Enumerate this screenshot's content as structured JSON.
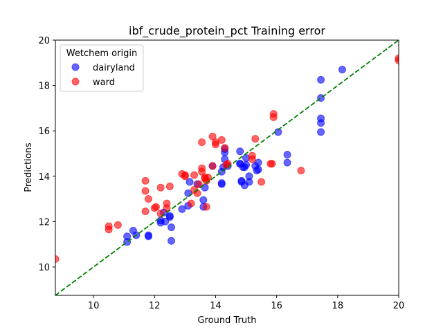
{
  "chart_data": {
    "type": "scatter",
    "title": "ibf_crude_protein_pct Training error",
    "xlabel": "Ground Truth",
    "ylabel": "Predictions",
    "xlim": [
      8.75,
      20
    ],
    "ylim": [
      8.75,
      20
    ],
    "xticks": [
      10,
      12,
      14,
      16,
      18,
      20
    ],
    "yticks": [
      10,
      12,
      14,
      16,
      18,
      20
    ],
    "grid": false,
    "legend": {
      "title": "Wetchem origin",
      "position": "top-left"
    },
    "reference_line": {
      "type": "y=x",
      "color": "#008000",
      "style": "dashed"
    },
    "series": [
      {
        "name": "dairyland",
        "color": "#0000ff",
        "points": [
          [
            11.1,
            11.1
          ],
          [
            11.1,
            11.35
          ],
          [
            11.3,
            11.6
          ],
          [
            11.4,
            11.4
          ],
          [
            11.8,
            11.35
          ],
          [
            11.8,
            11.4
          ],
          [
            12.2,
            11.95
          ],
          [
            12.2,
            12.05
          ],
          [
            12.3,
            12.4
          ],
          [
            12.35,
            12.0
          ],
          [
            12.5,
            12.2
          ],
          [
            12.5,
            12.25
          ],
          [
            12.55,
            11.75
          ],
          [
            12.55,
            11.15
          ],
          [
            12.9,
            12.55
          ],
          [
            13.1,
            12.7
          ],
          [
            13.1,
            13.25
          ],
          [
            13.15,
            13.75
          ],
          [
            13.4,
            13.65
          ],
          [
            13.6,
            12.65
          ],
          [
            13.6,
            12.95
          ],
          [
            13.65,
            13.5
          ],
          [
            13.9,
            14.45
          ],
          [
            14.2,
            13.65
          ],
          [
            14.2,
            13.7
          ],
          [
            14.2,
            14.2
          ],
          [
            14.25,
            14.4
          ],
          [
            14.3,
            14.75
          ],
          [
            14.3,
            15.05
          ],
          [
            14.3,
            15.2
          ],
          [
            14.4,
            14.45
          ],
          [
            14.8,
            15.1
          ],
          [
            14.8,
            14.55
          ],
          [
            14.8,
            14.55
          ],
          [
            14.85,
            13.8
          ],
          [
            14.85,
            13.75
          ],
          [
            14.9,
            14.4
          ],
          [
            14.95,
            14.4
          ],
          [
            14.95,
            13.6
          ],
          [
            15.0,
            14.5
          ],
          [
            15.0,
            14.8
          ],
          [
            15.1,
            14.0
          ],
          [
            15.1,
            13.75
          ],
          [
            15.3,
            14.45
          ],
          [
            15.35,
            14.25
          ],
          [
            15.4,
            14.3
          ],
          [
            15.4,
            14.6
          ],
          [
            16.05,
            15.95
          ],
          [
            16.35,
            14.6
          ],
          [
            16.35,
            14.95
          ],
          [
            17.45,
            15.95
          ],
          [
            17.45,
            16.35
          ],
          [
            17.45,
            16.55
          ],
          [
            17.45,
            17.45
          ],
          [
            17.45,
            18.25
          ],
          [
            18.15,
            18.7
          ]
        ]
      },
      {
        "name": "ward",
        "color": "#ff0000",
        "points": [
          [
            8.75,
            10.35
          ],
          [
            10.5,
            11.65
          ],
          [
            10.5,
            11.8
          ],
          [
            10.8,
            11.85
          ],
          [
            11.7,
            12.45
          ],
          [
            11.7,
            13.35
          ],
          [
            11.7,
            13.8
          ],
          [
            11.8,
            13.0
          ],
          [
            12.0,
            12.6
          ],
          [
            12.05,
            12.65
          ],
          [
            12.2,
            12.35
          ],
          [
            12.2,
            13.5
          ],
          [
            12.4,
            12.6
          ],
          [
            12.4,
            12.8
          ],
          [
            12.5,
            13.55
          ],
          [
            12.9,
            14.1
          ],
          [
            13.0,
            14.0
          ],
          [
            13.0,
            14.05
          ],
          [
            13.2,
            12.8
          ],
          [
            13.3,
            13.4
          ],
          [
            13.3,
            14.05
          ],
          [
            13.4,
            13.25
          ],
          [
            13.45,
            13.65
          ],
          [
            13.55,
            14.2
          ],
          [
            13.55,
            14.35
          ],
          [
            13.55,
            15.5
          ],
          [
            13.65,
            13.9
          ],
          [
            13.65,
            13.95
          ],
          [
            13.7,
            12.65
          ],
          [
            13.7,
            13.8
          ],
          [
            13.75,
            13.95
          ],
          [
            13.9,
            14.45
          ],
          [
            13.9,
            15.75
          ],
          [
            14.0,
            15.4
          ],
          [
            14.0,
            15.5
          ],
          [
            14.2,
            15.6
          ],
          [
            14.3,
            15.25
          ],
          [
            14.35,
            14.5
          ],
          [
            14.4,
            14.55
          ],
          [
            15.2,
            14.9
          ],
          [
            15.2,
            14.75
          ],
          [
            15.3,
            15.65
          ],
          [
            15.5,
            13.75
          ],
          [
            15.8,
            14.55
          ],
          [
            15.85,
            14.55
          ],
          [
            15.9,
            16.6
          ],
          [
            15.9,
            16.75
          ],
          [
            16.8,
            14.25
          ],
          [
            20.0,
            19.1
          ],
          [
            20.0,
            19.2
          ]
        ]
      }
    ]
  }
}
